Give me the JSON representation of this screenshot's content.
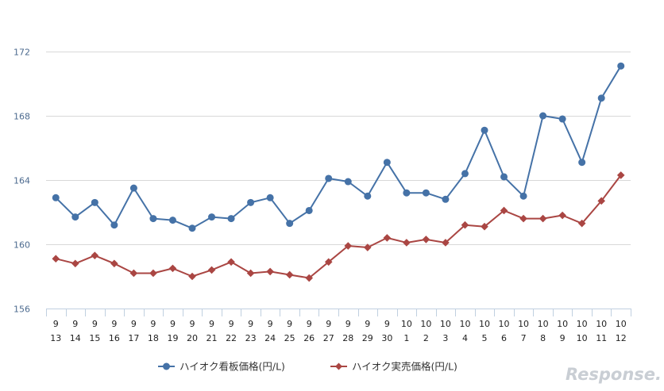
{
  "chart_data": {
    "type": "line",
    "categories": [
      [
        "9",
        "13"
      ],
      [
        "9",
        "14"
      ],
      [
        "9",
        "15"
      ],
      [
        "9",
        "16"
      ],
      [
        "9",
        "17"
      ],
      [
        "9",
        "18"
      ],
      [
        "9",
        "19"
      ],
      [
        "9",
        "20"
      ],
      [
        "9",
        "21"
      ],
      [
        "9",
        "22"
      ],
      [
        "9",
        "23"
      ],
      [
        "9",
        "24"
      ],
      [
        "9",
        "25"
      ],
      [
        "9",
        "26"
      ],
      [
        "9",
        "27"
      ],
      [
        "9",
        "28"
      ],
      [
        "9",
        "29"
      ],
      [
        "9",
        "30"
      ],
      [
        "10",
        "1"
      ],
      [
        "10",
        "2"
      ],
      [
        "10",
        "3"
      ],
      [
        "10",
        "4"
      ],
      [
        "10",
        "5"
      ],
      [
        "10",
        "6"
      ],
      [
        "10",
        "7"
      ],
      [
        "10",
        "8"
      ],
      [
        "10",
        "9"
      ],
      [
        "10",
        "10"
      ],
      [
        "10",
        "11"
      ],
      [
        "10",
        "12"
      ]
    ],
    "series": [
      {
        "name": "ハイオク看板価格(円/L)",
        "color": "#4572a7",
        "marker": "circle",
        "values": [
          162.9,
          161.7,
          162.6,
          161.2,
          163.5,
          161.6,
          161.5,
          161.0,
          161.7,
          161.6,
          162.6,
          162.9,
          161.3,
          162.1,
          164.1,
          163.9,
          163.0,
          165.1,
          163.2,
          163.2,
          162.8,
          164.4,
          167.1,
          164.2,
          163.0,
          168.0,
          167.8,
          165.1,
          169.1,
          171.1
        ]
      },
      {
        "name": "ハイオク実売価格(円/L)",
        "color": "#aa4643",
        "marker": "diamond",
        "values": [
          159.1,
          158.8,
          159.3,
          158.8,
          158.2,
          158.2,
          158.5,
          158.0,
          158.4,
          158.9,
          158.2,
          158.3,
          158.1,
          157.9,
          158.9,
          159.9,
          159.8,
          160.4,
          160.1,
          160.3,
          160.1,
          161.2,
          161.1,
          162.1,
          161.6,
          161.6,
          161.8,
          161.3,
          162.7,
          164.3
        ]
      }
    ],
    "yticks": [
      "156",
      "160",
      "164",
      "168",
      "172"
    ],
    "ylim": [
      156,
      172
    ],
    "grid": true,
    "legend_position": "bottom-center"
  },
  "watermark": {
    "text": "Response."
  }
}
